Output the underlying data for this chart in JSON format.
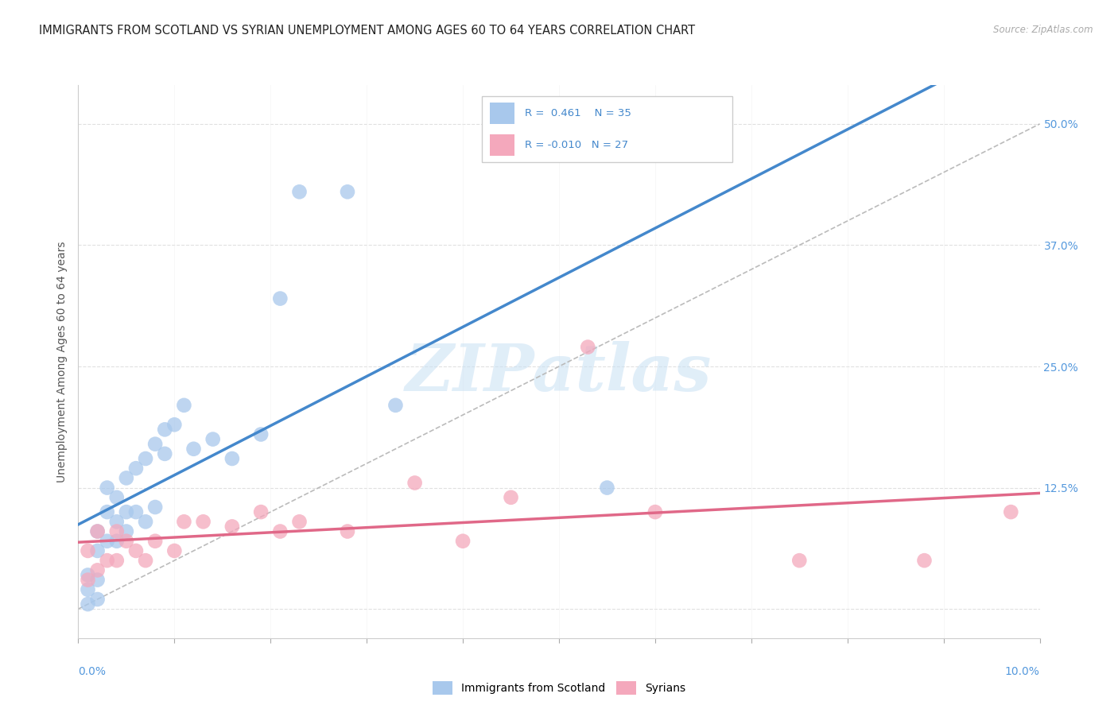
{
  "title": "IMMIGRANTS FROM SCOTLAND VS SYRIAN UNEMPLOYMENT AMONG AGES 60 TO 64 YEARS CORRELATION CHART",
  "source": "Source: ZipAtlas.com",
  "ylabel": "Unemployment Among Ages 60 to 64 years",
  "ytick_values": [
    0.0,
    0.125,
    0.25,
    0.375,
    0.5
  ],
  "ytick_labels": [
    "",
    "12.5%",
    "25.0%",
    "37.5%",
    "50.0%"
  ],
  "xmin": 0.0,
  "xmax": 0.1,
  "ymin": -0.03,
  "ymax": 0.54,
  "watermark_text": "ZIPatlas",
  "blue_color": "#A8C8EC",
  "pink_color": "#F4A8BC",
  "blue_line_color": "#4488CC",
  "pink_line_color": "#E06888",
  "grid_color": "#DDDDDD",
  "background_color": "#FFFFFF",
  "scotland_x": [
    0.001,
    0.001,
    0.001,
    0.002,
    0.002,
    0.002,
    0.002,
    0.003,
    0.003,
    0.003,
    0.004,
    0.004,
    0.004,
    0.005,
    0.005,
    0.005,
    0.006,
    0.006,
    0.007,
    0.007,
    0.008,
    0.008,
    0.009,
    0.009,
    0.01,
    0.011,
    0.012,
    0.014,
    0.016,
    0.019,
    0.021,
    0.023,
    0.028,
    0.033,
    0.055
  ],
  "scotland_y": [
    0.005,
    0.02,
    0.035,
    0.01,
    0.03,
    0.06,
    0.08,
    0.07,
    0.1,
    0.125,
    0.07,
    0.09,
    0.115,
    0.08,
    0.1,
    0.135,
    0.1,
    0.145,
    0.09,
    0.155,
    0.105,
    0.17,
    0.16,
    0.185,
    0.19,
    0.21,
    0.165,
    0.175,
    0.155,
    0.18,
    0.32,
    0.43,
    0.43,
    0.21,
    0.125
  ],
  "syrian_x": [
    0.001,
    0.001,
    0.002,
    0.002,
    0.003,
    0.004,
    0.004,
    0.005,
    0.006,
    0.007,
    0.008,
    0.01,
    0.011,
    0.013,
    0.016,
    0.019,
    0.021,
    0.023,
    0.028,
    0.035,
    0.04,
    0.045,
    0.053,
    0.06,
    0.075,
    0.088,
    0.097
  ],
  "syrian_y": [
    0.03,
    0.06,
    0.04,
    0.08,
    0.05,
    0.05,
    0.08,
    0.07,
    0.06,
    0.05,
    0.07,
    0.06,
    0.09,
    0.09,
    0.085,
    0.1,
    0.08,
    0.09,
    0.08,
    0.13,
    0.07,
    0.115,
    0.27,
    0.1,
    0.05,
    0.05,
    0.1
  ]
}
